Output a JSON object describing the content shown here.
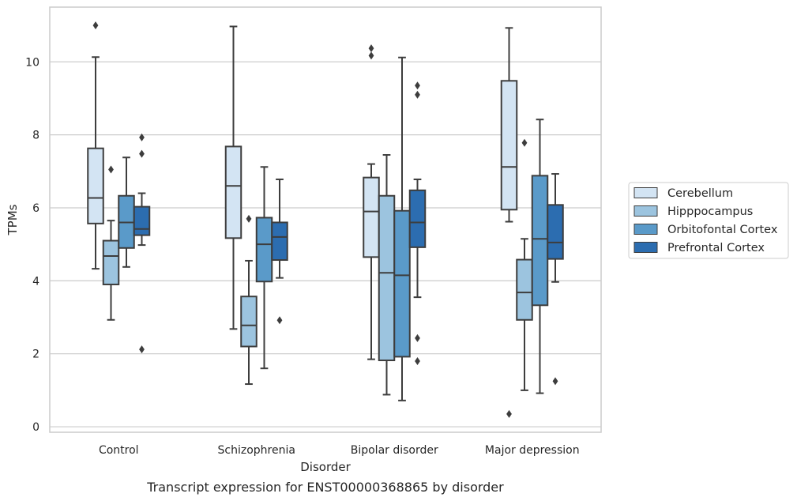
{
  "chart_data": {
    "type": "box",
    "caption": "Transcript expression for ENST00000368865 by disorder",
    "xlabel": "Disorder",
    "ylabel": "TPMs",
    "ylim": [
      -0.15,
      11.5
    ],
    "yticks": [
      0,
      2,
      4,
      6,
      8,
      10
    ],
    "grid": "horizontal",
    "legend_position": "right",
    "categories": [
      "Control",
      "Schizophrenia",
      "Bipolar disorder",
      "Major depression"
    ],
    "series": [
      {
        "name": "Cerebellum",
        "color": "#d3e4f3",
        "boxes": [
          {
            "whislo": 4.33,
            "q1": 5.57,
            "med": 6.27,
            "q3": 7.63,
            "whishi": 10.13,
            "fliers": [
              11.0
            ]
          },
          {
            "whislo": 2.68,
            "q1": 5.17,
            "med": 6.6,
            "q3": 7.68,
            "whishi": 10.97,
            "fliers": []
          },
          {
            "whislo": 1.85,
            "q1": 4.65,
            "med": 5.9,
            "q3": 6.83,
            "whishi": 7.2,
            "fliers": [
              10.17,
              10.37
            ]
          },
          {
            "whislo": 5.62,
            "q1": 5.95,
            "med": 7.12,
            "q3": 9.48,
            "whishi": 10.93,
            "fliers": [
              0.35
            ]
          }
        ]
      },
      {
        "name": "Hipppocampus",
        "color": "#9cc4df",
        "boxes": [
          {
            "whislo": 2.93,
            "q1": 3.9,
            "med": 4.68,
            "q3": 5.1,
            "whishi": 5.65,
            "fliers": [
              7.05
            ]
          },
          {
            "whislo": 1.17,
            "q1": 2.2,
            "med": 2.78,
            "q3": 3.57,
            "whishi": 4.55,
            "fliers": [
              5.7
            ]
          },
          {
            "whislo": 0.88,
            "q1": 1.82,
            "med": 4.22,
            "q3": 6.33,
            "whishi": 7.45,
            "fliers": []
          },
          {
            "whislo": 1.0,
            "q1": 2.93,
            "med": 3.68,
            "q3": 4.58,
            "whishi": 5.15,
            "fliers": [
              7.78
            ]
          }
        ]
      },
      {
        "name": "Orbitofontal Cortex",
        "color": "#5a9ac9",
        "boxes": [
          {
            "whislo": 4.38,
            "q1": 4.9,
            "med": 5.6,
            "q3": 6.33,
            "whishi": 7.38,
            "fliers": []
          },
          {
            "whislo": 1.6,
            "q1": 3.98,
            "med": 5.0,
            "q3": 5.73,
            "whishi": 7.12,
            "fliers": []
          },
          {
            "whislo": 0.72,
            "q1": 1.92,
            "med": 4.15,
            "q3": 5.92,
            "whishi": 10.12,
            "fliers": []
          },
          {
            "whislo": 0.92,
            "q1": 3.33,
            "med": 5.15,
            "q3": 6.88,
            "whishi": 8.42,
            "fliers": []
          }
        ]
      },
      {
        "name": "Prefrontal Cortex",
        "color": "#2c6db0",
        "boxes": [
          {
            "whislo": 4.98,
            "q1": 5.25,
            "med": 5.42,
            "q3": 6.03,
            "whishi": 6.4,
            "fliers": [
              7.48,
              7.93,
              2.12
            ]
          },
          {
            "whislo": 4.08,
            "q1": 4.57,
            "med": 5.2,
            "q3": 5.6,
            "whishi": 6.78,
            "fliers": [
              2.92
            ]
          },
          {
            "whislo": 3.55,
            "q1": 4.92,
            "med": 5.6,
            "q3": 6.48,
            "whishi": 6.78,
            "fliers": [
              9.1,
              9.35,
              2.43,
              1.8
            ]
          },
          {
            "whislo": 3.97,
            "q1": 4.6,
            "med": 5.05,
            "q3": 6.08,
            "whishi": 6.93,
            "fliers": [
              1.25
            ]
          }
        ]
      }
    ]
  }
}
